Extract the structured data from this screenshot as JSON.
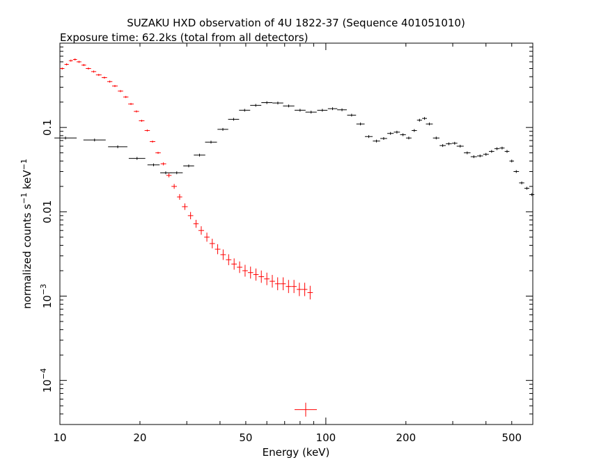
{
  "title": "SUZAKU HXD observation of 4U 1822-37 (Sequence 401051010)",
  "subtitle": "Exposure time: 62.2ks (total from all detectors)",
  "chart_data": {
    "type": "scatter",
    "title": "SUZAKU HXD observation of 4U 1822-37 (Sequence 401051010)",
    "subtitle": "Exposure time: 62.2ks (total from all detectors)",
    "xlabel": "Energy (keV)",
    "ylabel_main": "normalized counts s",
    "ylabel_exp1": "−1",
    "ylabel_mid": " keV",
    "ylabel_exp2": "−1",
    "xscale": "log",
    "yscale": "log",
    "xlim": [
      10,
      600
    ],
    "ylim": [
      3e-05,
      1.0
    ],
    "grid": false,
    "x_ticks": [
      {
        "value": 10,
        "label": "10"
      },
      {
        "value": 20,
        "label": "20"
      },
      {
        "value": 50,
        "label": "50"
      },
      {
        "value": 100,
        "label": "100"
      },
      {
        "value": 200,
        "label": "200"
      },
      {
        "value": 500,
        "label": "500"
      }
    ],
    "y_ticks": [
      {
        "value": 0.1,
        "label": "0.1",
        "base": "",
        "exp": ""
      },
      {
        "value": 0.01,
        "label": "0.01",
        "base": "",
        "exp": ""
      },
      {
        "value": 0.001,
        "label": "",
        "base": "10",
        "exp": "−3"
      },
      {
        "value": 0.0001,
        "label": "",
        "base": "10",
        "exp": "−4"
      }
    ],
    "series": [
      {
        "color": "#000000",
        "points": [
          [
            10.5,
            0.075
          ],
          [
            13.5,
            0.071
          ],
          [
            16.5,
            0.059
          ],
          [
            19.5,
            0.043
          ],
          [
            22.5,
            0.036
          ],
          [
            25.0,
            0.029
          ],
          [
            27.5,
            0.029
          ],
          [
            30.5,
            0.035
          ],
          [
            33.5,
            0.047
          ],
          [
            37.0,
            0.067
          ],
          [
            41.0,
            0.095
          ],
          [
            45.0,
            0.125
          ],
          [
            49.5,
            0.16
          ],
          [
            54.5,
            0.183
          ],
          [
            60.0,
            0.197
          ],
          [
            66.0,
            0.195
          ],
          [
            72.5,
            0.18
          ],
          [
            80.0,
            0.16
          ],
          [
            88.0,
            0.152
          ],
          [
            97.0,
            0.16
          ],
          [
            106.0,
            0.167
          ],
          [
            115.0,
            0.162
          ],
          [
            125.0,
            0.14
          ],
          [
            135.0,
            0.11
          ],
          [
            145.0,
            0.078
          ],
          [
            155.0,
            0.069
          ],
          [
            165.0,
            0.074
          ],
          [
            175.0,
            0.085
          ],
          [
            185.0,
            0.088
          ],
          [
            195.0,
            0.082
          ],
          [
            205.0,
            0.075
          ],
          [
            215.0,
            0.092
          ],
          [
            225.0,
            0.122
          ],
          [
            235.0,
            0.128
          ],
          [
            245.0,
            0.11
          ],
          [
            260.0,
            0.075
          ],
          [
            275.0,
            0.061
          ],
          [
            290.0,
            0.064
          ],
          [
            305.0,
            0.065
          ],
          [
            320.0,
            0.06
          ],
          [
            340.0,
            0.05
          ],
          [
            360.0,
            0.045
          ],
          [
            380.0,
            0.046
          ],
          [
            400.0,
            0.048
          ],
          [
            420.0,
            0.052
          ],
          [
            440.0,
            0.056
          ],
          [
            460.0,
            0.057
          ],
          [
            480.0,
            0.052
          ],
          [
            500.0,
            0.04
          ],
          [
            520.0,
            0.03
          ],
          [
            545.0,
            0.022
          ],
          [
            570.0,
            0.019
          ],
          [
            595.0,
            0.016
          ]
        ]
      },
      {
        "color": "#ff0000",
        "points": [
          [
            10.2,
            0.5
          ],
          [
            10.6,
            0.56
          ],
          [
            11.0,
            0.62
          ],
          [
            11.4,
            0.64
          ],
          [
            11.8,
            0.6
          ],
          [
            12.3,
            0.55
          ],
          [
            12.8,
            0.5
          ],
          [
            13.4,
            0.46
          ],
          [
            14.0,
            0.42
          ],
          [
            14.7,
            0.39
          ],
          [
            15.4,
            0.35
          ],
          [
            16.1,
            0.31
          ],
          [
            16.9,
            0.27
          ],
          [
            17.7,
            0.23
          ],
          [
            18.5,
            0.19
          ],
          [
            19.4,
            0.155
          ],
          [
            20.3,
            0.12
          ],
          [
            21.3,
            0.092
          ],
          [
            22.3,
            0.068
          ],
          [
            23.4,
            0.05
          ],
          [
            24.5,
            0.037
          ],
          [
            25.7,
            0.027
          ],
          [
            26.9,
            0.02
          ],
          [
            28.2,
            0.015
          ],
          [
            29.5,
            0.0115
          ],
          [
            31.0,
            0.009
          ],
          [
            32.5,
            0.0072
          ],
          [
            34.0,
            0.006
          ],
          [
            35.7,
            0.005
          ],
          [
            37.4,
            0.0042
          ],
          [
            39.2,
            0.0036
          ],
          [
            41.1,
            0.0031
          ],
          [
            43.1,
            0.0027
          ],
          [
            45.2,
            0.0024
          ],
          [
            47.4,
            0.0022
          ],
          [
            49.7,
            0.002
          ],
          [
            52.1,
            0.0019
          ],
          [
            54.6,
            0.0018
          ],
          [
            57.2,
            0.0017
          ],
          [
            60.0,
            0.0016
          ],
          [
            62.9,
            0.0015
          ],
          [
            65.9,
            0.0014
          ],
          [
            69.1,
            0.0014
          ],
          [
            72.4,
            0.0013
          ],
          [
            75.9,
            0.0013
          ],
          [
            79.5,
            0.0012
          ],
          [
            83.3,
            0.0012
          ],
          [
            87.3,
            0.0011
          ],
          [
            84.0,
            4.5e-05
          ]
        ]
      }
    ]
  }
}
